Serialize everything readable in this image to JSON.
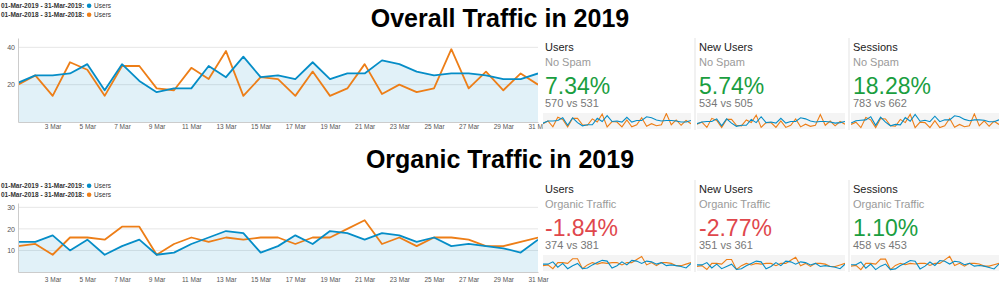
{
  "chart_data": [
    {
      "type": "line",
      "title": "Overall Traffic in 2019",
      "categories": [
        null,
        null,
        "3 Mar",
        null,
        "5 Mar",
        null,
        "7 Mar",
        null,
        "9 Mar",
        null,
        "11 Mar",
        null,
        "13 Mar",
        null,
        "15 Mar",
        null,
        "17 Mar",
        null,
        "19 Mar",
        null,
        "21 Mar",
        null,
        "23 Mar",
        null,
        "25 Mar",
        null,
        "27 Mar",
        null,
        "29 Mar",
        null,
        "31 Mar"
      ],
      "series": [
        {
          "name": "Users",
          "period": "01-Mar-2019 - 31-Mar-2019:",
          "color": "#058dc7",
          "type": "area",
          "values": [
            21,
            25,
            25,
            26,
            31,
            17,
            31,
            22,
            16,
            18,
            18,
            30,
            24,
            35,
            24,
            25,
            23,
            32,
            23,
            26,
            26,
            33,
            31,
            27,
            25,
            26,
            26,
            25,
            23,
            23,
            26
          ]
        },
        {
          "name": "Users",
          "period": "01-Mar-2018 - 31-Mar-2018:",
          "color": "#ed7e17",
          "type": "line",
          "values": [
            20,
            25,
            14,
            32,
            28,
            14,
            30,
            30,
            18,
            17,
            29,
            23,
            38,
            14,
            24,
            23,
            14,
            27,
            14,
            18,
            31,
            15,
            20,
            16,
            18,
            39,
            18,
            27,
            17,
            26,
            20
          ]
        }
      ],
      "ylim": [
        0,
        45
      ],
      "yticks": [
        20,
        40
      ],
      "grid": true,
      "legend": "top-left"
    },
    {
      "type": "line",
      "title": "Organic Traffic in 2019",
      "categories": [
        null,
        null,
        "3 Mar",
        null,
        "5 Mar",
        null,
        "7 Mar",
        null,
        "9 Mar",
        null,
        "11 Mar",
        null,
        "13 Mar",
        null,
        "15 Mar",
        null,
        "17 Mar",
        null,
        "19 Mar",
        null,
        "21 Mar",
        null,
        "23 Mar",
        null,
        "25 Mar",
        null,
        "27 Mar",
        null,
        "29 Mar",
        null,
        "31 Mar"
      ],
      "series": [
        {
          "name": "Users",
          "period": "01-Mar-2019 - 31-Mar-2019:",
          "color": "#058dc7",
          "type": "area",
          "values": [
            14,
            14,
            17,
            10,
            15,
            8,
            12,
            15,
            8,
            9,
            13,
            16,
            19,
            18,
            9,
            12,
            17,
            13,
            19,
            18,
            15,
            18,
            17,
            14,
            16,
            12,
            13,
            12,
            11,
            9,
            15
          ]
        },
        {
          "name": "Users",
          "period": "01-Mar-2018 - 31-Mar-2018:",
          "color": "#ed7e17",
          "type": "line",
          "values": [
            12,
            13,
            8,
            16,
            16,
            15,
            21,
            21,
            8,
            13,
            16,
            14,
            16,
            15,
            16,
            16,
            13,
            16,
            16,
            20,
            24,
            13,
            16,
            12,
            16,
            16,
            15,
            12,
            12,
            14,
            16
          ]
        }
      ],
      "ylim": [
        0,
        32
      ],
      "yticks": [
        10,
        20,
        30
      ],
      "grid": true,
      "legend": "top-left"
    }
  ],
  "scorecards": [
    [
      {
        "title": "Users",
        "segment": "No Spam",
        "change": "7.34%",
        "comparison": "570 vs 531",
        "color": "#1a9e3f",
        "sparkline": {
          "ylim": [
            10,
            40
          ],
          "tick_labels": false,
          "series": [
            {
              "color": "#058dc7",
              "values": [
                21,
                25,
                25,
                26,
                31,
                17,
                31,
                22,
                16,
                18,
                18,
                30,
                24,
                35,
                24,
                25,
                23,
                32,
                23,
                26,
                26,
                33,
                31,
                27,
                25,
                26,
                26,
                25,
                23,
                23,
                26
              ]
            },
            {
              "color": "#ed7e17",
              "values": [
                20,
                25,
                14,
                32,
                28,
                14,
                30,
                30,
                18,
                17,
                29,
                23,
                38,
                14,
                24,
                23,
                14,
                27,
                14,
                18,
                31,
                15,
                20,
                16,
                18,
                39,
                18,
                27,
                17,
                26,
                20
              ]
            }
          ]
        }
      },
      {
        "title": "New Users",
        "segment": "No Spam",
        "change": "5.74%",
        "comparison": "534 vs 505",
        "color": "#1a9e3f",
        "sparkline": {
          "ylim": [
            10,
            40
          ],
          "tick_labels": false,
          "series": [
            {
              "color": "#058dc7",
              "values": [
                20,
                23,
                24,
                24,
                29,
                16,
                29,
                21,
                15,
                17,
                17,
                28,
                22,
                33,
                22,
                23,
                21,
                30,
                21,
                24,
                24,
                31,
                29,
                25,
                23,
                24,
                24,
                23,
                21,
                22,
                24
              ]
            },
            {
              "color": "#ed7e17",
              "values": [
                19,
                23,
                13,
                30,
                26,
                13,
                28,
                28,
                17,
                16,
                27,
                22,
                36,
                13,
                22,
                22,
                13,
                25,
                13,
                17,
                29,
                14,
                19,
                15,
                17,
                37,
                17,
                25,
                16,
                24,
                19
              ]
            }
          ]
        }
      },
      {
        "title": "Sessions",
        "segment": "No Spam",
        "change": "18.28%",
        "comparison": "783 vs 662",
        "color": "#1a9e3f",
        "sparkline": {
          "ylim": [
            15,
            50
          ],
          "tick_labels": false,
          "series": [
            {
              "color": "#058dc7",
              "values": [
                28,
                33,
                34,
                35,
                42,
                23,
                41,
                30,
                22,
                25,
                24,
                40,
                32,
                47,
                32,
                34,
                31,
                43,
                31,
                35,
                35,
                44,
                42,
                36,
                33,
                35,
                35,
                34,
                31,
                31,
                35
              ]
            },
            {
              "color": "#ed7e17",
              "values": [
                25,
                30,
                18,
                40,
                35,
                18,
                38,
                37,
                22,
                21,
                36,
                29,
                47,
                18,
                30,
                29,
                18,
                33,
                18,
                22,
                38,
                19,
                25,
                20,
                22,
                48,
                22,
                33,
                21,
                32,
                25
              ]
            }
          ]
        }
      }
    ],
    [
      {
        "title": "Users",
        "segment": "Organic Traffic",
        "change": "-1.84%",
        "comparison": "374 vs 381",
        "color": "#e0474c",
        "sparkline": {
          "ylim": [
            5,
            26
          ],
          "tick_labels": false,
          "series": [
            {
              "color": "#058dc7",
              "values": [
                14,
                14,
                17,
                10,
                15,
                8,
                12,
                15,
                8,
                9,
                13,
                16,
                19,
                18,
                9,
                12,
                17,
                13,
                19,
                18,
                15,
                18,
                17,
                14,
                16,
                12,
                13,
                12,
                11,
                9,
                15
              ]
            },
            {
              "color": "#ed7e17",
              "values": [
                12,
                13,
                8,
                16,
                16,
                15,
                21,
                21,
                8,
                13,
                16,
                14,
                16,
                15,
                16,
                16,
                13,
                16,
                16,
                20,
                24,
                13,
                16,
                12,
                16,
                16,
                15,
                12,
                12,
                14,
                16
              ]
            }
          ]
        }
      },
      {
        "title": "New Users",
        "segment": "Organic Traffic",
        "change": "-2.77%",
        "comparison": "351 vs 361",
        "color": "#e0474c",
        "sparkline": {
          "ylim": [
            5,
            26
          ],
          "tick_labels": false,
          "series": [
            {
              "color": "#058dc7",
              "values": [
                13,
                13,
                16,
                9,
                14,
                8,
                11,
                14,
                7,
                8,
                12,
                15,
                18,
                17,
                8,
                11,
                16,
                12,
                18,
                17,
                14,
                17,
                16,
                13,
                15,
                11,
                12,
                11,
                10,
                8,
                14
              ]
            },
            {
              "color": "#ed7e17",
              "values": [
                11,
                12,
                7,
                15,
                15,
                14,
                20,
                20,
                7,
                12,
                15,
                13,
                15,
                14,
                15,
                15,
                12,
                15,
                15,
                19,
                23,
                12,
                15,
                11,
                15,
                15,
                14,
                11,
                11,
                13,
                15
              ]
            }
          ]
        }
      },
      {
        "title": "Sessions",
        "segment": "Organic Traffic",
        "change": "1.10%",
        "comparison": "458 vs 453",
        "color": "#1a9e3f",
        "sparkline": {
          "ylim": [
            8,
            31
          ],
          "tick_labels": false,
          "series": [
            {
              "color": "#058dc7",
              "values": [
                17,
                17,
                21,
                12,
                18,
                10,
                15,
                18,
                10,
                11,
                16,
                19,
                23,
                22,
                11,
                15,
                21,
                16,
                23,
                22,
                18,
                22,
                21,
                17,
                19,
                15,
                16,
                15,
                13,
                11,
                18
              ]
            },
            {
              "color": "#ed7e17",
              "values": [
                15,
                16,
                10,
                19,
                19,
                18,
                25,
                25,
                10,
                16,
                19,
                17,
                19,
                18,
                19,
                19,
                16,
                19,
                19,
                24,
                29,
                16,
                19,
                15,
                19,
                19,
                18,
                15,
                15,
                17,
                19
              ]
            }
          ]
        }
      }
    ]
  ]
}
